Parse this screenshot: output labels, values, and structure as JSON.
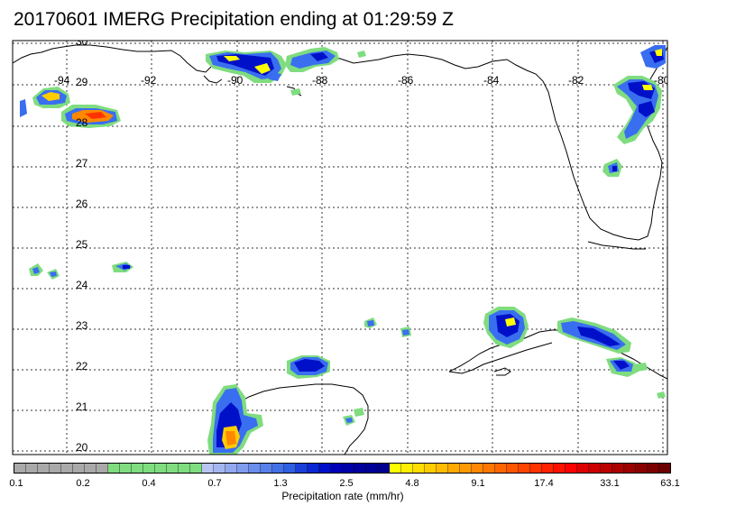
{
  "title": "20170601 IMERG Precipitation ending at 01:29:59 Z",
  "map": {
    "lon_range": [
      -95,
      -79.6
    ],
    "lat_range": [
      19.9,
      30.0
    ],
    "lon_ticks": [
      "-94",
      "-92",
      "-90",
      "-88",
      "-86",
      "-84",
      "-82",
      "-80"
    ],
    "lat_ticks": [
      "30",
      "29",
      "28",
      "27",
      "26",
      "25",
      "24",
      "23",
      "22",
      "21",
      "20"
    ],
    "gridlines": "dotted",
    "coastline_color": "#000000"
  },
  "colorbar": {
    "colors": [
      "#a9a9a9",
      "#a9a9a9",
      "#a9a9a9",
      "#a9a9a9",
      "#a9a9a9",
      "#a9a9a9",
      "#a9a9a9",
      "#a9a9a9",
      "#7fdc7f",
      "#7fdc7f",
      "#7fdc7f",
      "#7fdc7f",
      "#7fdc7f",
      "#7fdc7f",
      "#7fdc7f",
      "#7fdc7f",
      "#b8c4f4",
      "#a5b7f2",
      "#92a9f0",
      "#7f9cee",
      "#6b8eec",
      "#587fea",
      "#4470e6",
      "#2e5fe0",
      "#1a3fd8",
      "#0a26d0",
      "#0010c8",
      "#0000b8",
      "#0000a8",
      "#00009c",
      "#000096",
      "#000090",
      "#ffff00",
      "#ffee00",
      "#ffdd00",
      "#ffcc00",
      "#ffbb00",
      "#ffaa00",
      "#ff9900",
      "#ff8800",
      "#ff7700",
      "#ff6600",
      "#ff5500",
      "#ff4400",
      "#ff3300",
      "#ff2200",
      "#ff1100",
      "#ff0000",
      "#dd0000",
      "#cc0000",
      "#bb0000",
      "#aa0000",
      "#990000",
      "#880000",
      "#7a0000",
      "#6b0000"
    ],
    "tick_labels": [
      "0.1",
      "0.2",
      "0.4",
      "0.7",
      "1.3",
      "2.5",
      "4.8",
      "9.1",
      "17.4",
      "33.1",
      "63.1"
    ],
    "label": "Precipitation rate (mm/hr)"
  },
  "precip_levels": [
    "light-blue",
    "blue",
    "dark-blue",
    "yellow",
    "orange",
    "red"
  ]
}
